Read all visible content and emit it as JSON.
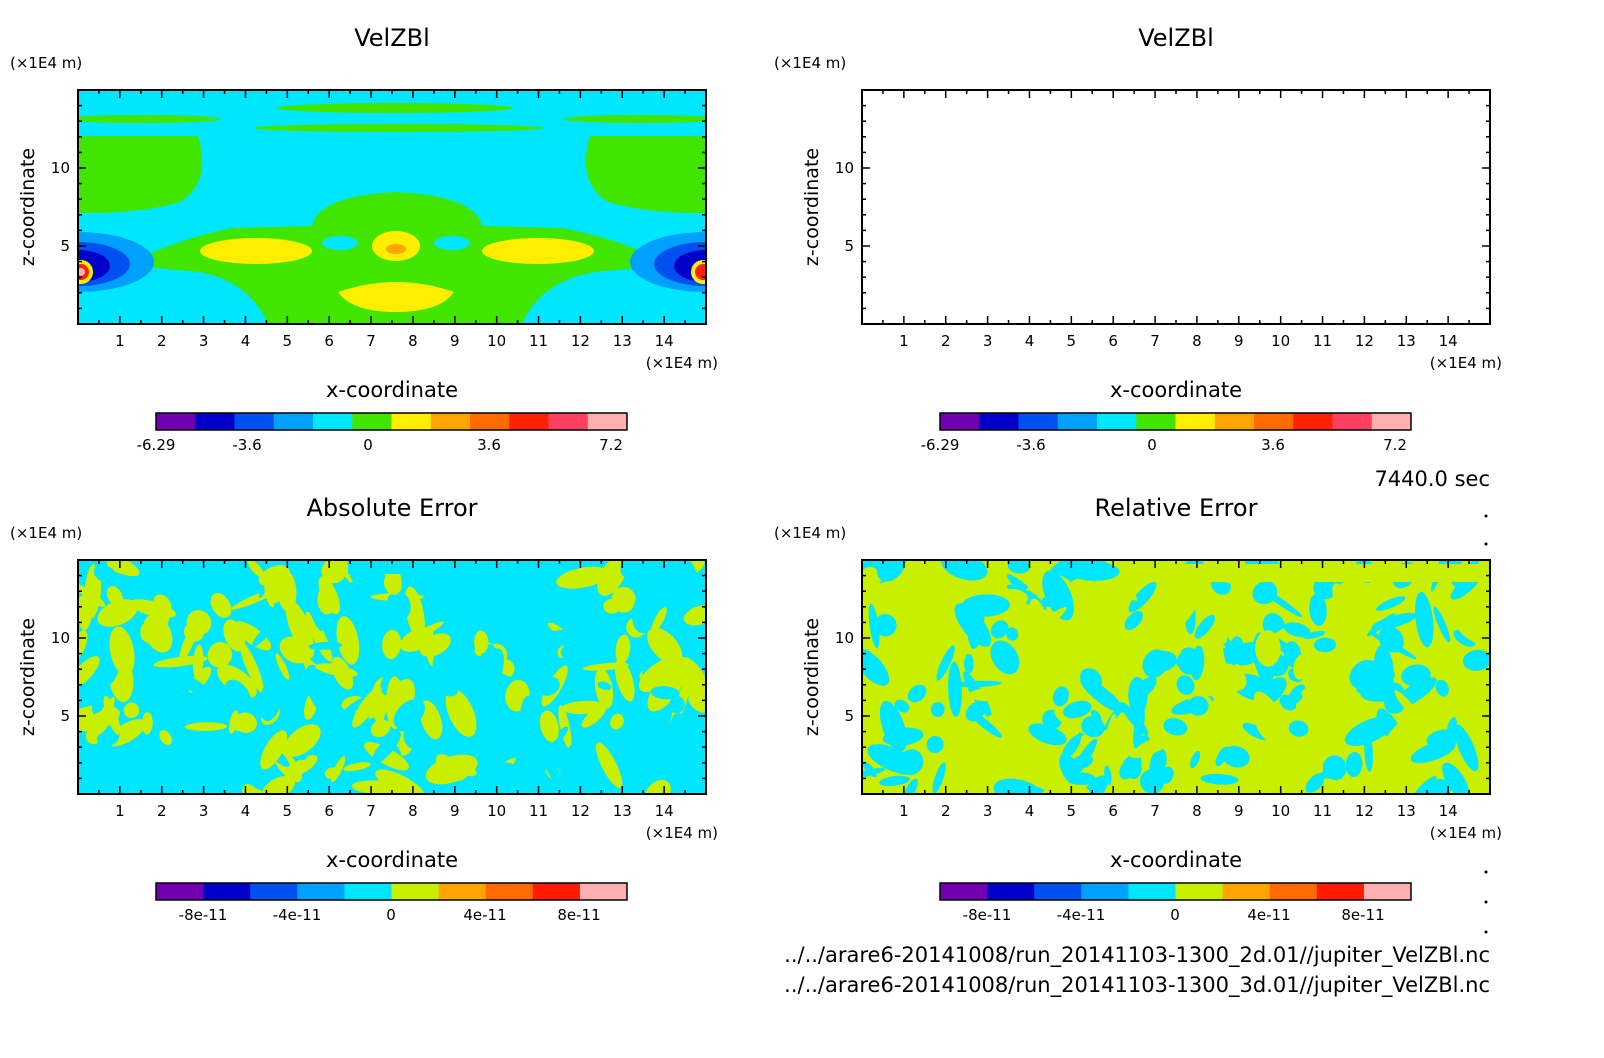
{
  "timestamp": "7440.0 sec",
  "file_paths": [
    "../../arare6-20141008/run_20141103-1300_2d.01//jupiter_VelZBl.nc",
    "../../arare6-20141008/run_20141103-1300_3d.01//jupiter_VelZBl.nc"
  ],
  "chart_data": [
    {
      "type": "heatmap",
      "title": "VelZBl",
      "xlabel": "x-coordinate",
      "ylabel": "z-coordinate",
      "x_unit": "(×1E4 m)",
      "y_unit": "(×1E4 m)",
      "xlim": [
        0,
        15
      ],
      "ylim": [
        0,
        15
      ],
      "x_ticks": [
        "1",
        "2",
        "3",
        "4",
        "5",
        "6",
        "7",
        "8",
        "9",
        "10",
        "11",
        "12",
        "13",
        "14"
      ],
      "y_ticks": [
        "5",
        "10"
      ],
      "colorbar": {
        "labels": [
          "-6.29",
          "-3.6",
          "0",
          "3.6",
          "7.2"
        ],
        "colors": [
          "#7000b0",
          "#0000c8",
          "#0050f0",
          "#00a0ff",
          "#00e6ff",
          "#40e600",
          "#ffee00",
          "#ffa500",
          "#ff6a00",
          "#ff2200",
          "#ff4060",
          "#ffb0b0"
        ]
      }
    },
    {
      "type": "heatmap",
      "title": "VelZBl",
      "xlabel": "x-coordinate",
      "ylabel": "z-coordinate",
      "x_unit": "(×1E4 m)",
      "y_unit": "(×1E4 m)",
      "xlim": [
        0,
        15
      ],
      "ylim": [
        0,
        15
      ],
      "x_ticks": [
        "1",
        "2",
        "3",
        "4",
        "5",
        "6",
        "7",
        "8",
        "9",
        "10",
        "11",
        "12",
        "13",
        "14"
      ],
      "y_ticks": [
        "5",
        "10"
      ],
      "colorbar": {
        "labels": [
          "-6.29",
          "-3.6",
          "0",
          "3.6",
          "7.2"
        ],
        "colors": [
          "#7000b0",
          "#0000c8",
          "#0050f0",
          "#00a0ff",
          "#00e6ff",
          "#40e600",
          "#ffee00",
          "#ffa500",
          "#ff6a00",
          "#ff2200",
          "#ff4060",
          "#ffb0b0"
        ]
      }
    },
    {
      "type": "heatmap",
      "title": "Absolute Error",
      "xlabel": "x-coordinate",
      "ylabel": "z-coordinate",
      "x_unit": "(×1E4 m)",
      "y_unit": "(×1E4 m)",
      "xlim": [
        0,
        15
      ],
      "ylim": [
        0,
        15
      ],
      "x_ticks": [
        "1",
        "2",
        "3",
        "4",
        "5",
        "6",
        "7",
        "8",
        "9",
        "10",
        "11",
        "12",
        "13",
        "14"
      ],
      "y_ticks": [
        "5",
        "10"
      ],
      "colorbar": {
        "labels": [
          "-8e-11",
          "-4e-11",
          "0",
          "4e-11",
          "8e-11"
        ],
        "colors": [
          "#7000b0",
          "#0000c8",
          "#0050f0",
          "#00a0ff",
          "#00e6ff",
          "#c8ee00",
          "#ffa500",
          "#ff6a00",
          "#ff1a00",
          "#ffb0b0"
        ]
      }
    },
    {
      "type": "heatmap",
      "title": "Relative Error",
      "xlabel": "x-coordinate",
      "ylabel": "z-coordinate",
      "x_unit": "(×1E4 m)",
      "y_unit": "(×1E4 m)",
      "xlim": [
        0,
        15
      ],
      "ylim": [
        0,
        15
      ],
      "x_ticks": [
        "1",
        "2",
        "3",
        "4",
        "5",
        "6",
        "7",
        "8",
        "9",
        "10",
        "11",
        "12",
        "13",
        "14"
      ],
      "y_ticks": [
        "5",
        "10"
      ],
      "colorbar": {
        "labels": [
          "-8e-11",
          "-4e-11",
          "0",
          "4e-11",
          "8e-11"
        ],
        "colors": [
          "#7000b0",
          "#0000c8",
          "#0050f0",
          "#00a0ff",
          "#00e6ff",
          "#c8ee00",
          "#ffa500",
          "#ff6a00",
          "#ff1a00",
          "#ffb0b0"
        ]
      }
    }
  ]
}
